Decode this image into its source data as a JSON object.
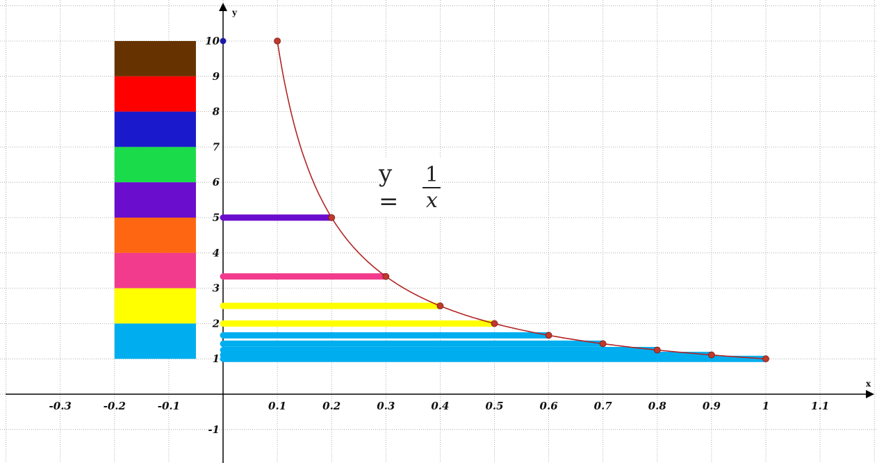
{
  "chart_data": {
    "type": "line",
    "title": "",
    "formula": {
      "lhs": "y =",
      "numerator": "1",
      "denominator": "x"
    },
    "xlabel": "x",
    "ylabel": "y",
    "xlim": [
      -0.4,
      1.2
    ],
    "ylim": [
      -1.7,
      11.1
    ],
    "grid": true,
    "x_ticks": [
      {
        "value": -0.3,
        "label": "-0.3"
      },
      {
        "value": -0.2,
        "label": "-0.2"
      },
      {
        "value": -0.1,
        "label": "-0.1"
      },
      {
        "value": 0.1,
        "label": "0.1"
      },
      {
        "value": 0.2,
        "label": "0.2"
      },
      {
        "value": 0.3,
        "label": "0.3"
      },
      {
        "value": 0.4,
        "label": "0.4"
      },
      {
        "value": 0.5,
        "label": "0.5"
      },
      {
        "value": 0.6,
        "label": "0.6"
      },
      {
        "value": 0.7,
        "label": "0.7"
      },
      {
        "value": 0.8,
        "label": "0.8"
      },
      {
        "value": 0.9,
        "label": "0.9"
      },
      {
        "value": 1,
        "label": "1"
      },
      {
        "value": 1.1,
        "label": "1.1"
      }
    ],
    "y_ticks": [
      {
        "value": -1,
        "label": "-1"
      },
      {
        "value": 1,
        "label": "1"
      },
      {
        "value": 2,
        "label": "2"
      },
      {
        "value": 3,
        "label": "3"
      },
      {
        "value": 4,
        "label": "4"
      },
      {
        "value": 5,
        "label": "5"
      },
      {
        "value": 6,
        "label": "6"
      },
      {
        "value": 7,
        "label": "7"
      },
      {
        "value": 8,
        "label": "8"
      },
      {
        "value": 9,
        "label": "9"
      },
      {
        "value": 10,
        "label": "10"
      }
    ],
    "curve": {
      "function": "1/x",
      "x_range": [
        0.1,
        1
      ],
      "color": "#b22222"
    },
    "curve_points": [
      {
        "x": 0.1,
        "y": 10
      },
      {
        "x": 0.2,
        "y": 5
      },
      {
        "x": 0.3,
        "y": 3.333
      },
      {
        "x": 0.4,
        "y": 2.5
      },
      {
        "x": 0.5,
        "y": 2
      },
      {
        "x": 0.6,
        "y": 1.667
      },
      {
        "x": 0.7,
        "y": 1.429
      },
      {
        "x": 0.8,
        "y": 1.25
      },
      {
        "x": 0.9,
        "y": 1.111
      },
      {
        "x": 1,
        "y": 1
      }
    ],
    "point_color": "#c0392b",
    "y_axis_points": [
      {
        "x": 0,
        "y": 10,
        "color": "#1a1aaa"
      }
    ],
    "segments": [
      {
        "y": 5,
        "x_end": 0.2,
        "color": "#6a0dcc"
      },
      {
        "y": 3.333,
        "x_end": 0.3,
        "color": "#f23b8c"
      },
      {
        "y": 2.5,
        "x_end": 0.4,
        "color": "#ffff00"
      },
      {
        "y": 2,
        "x_end": 0.5,
        "color": "#ffff00"
      },
      {
        "y": 1.667,
        "x_end": 0.6,
        "color": "#00aeef"
      },
      {
        "y": 1.429,
        "x_end": 0.7,
        "color": "#00aeef"
      },
      {
        "y": 1.25,
        "x_end": 0.8,
        "color": "#00aeef"
      },
      {
        "y": 1.111,
        "x_end": 0.9,
        "color": "#00aeef"
      },
      {
        "y": 1,
        "x_end": 1,
        "color": "#00aeef"
      }
    ],
    "color_blocks": {
      "x_range": [
        -0.2,
        -0.05
      ],
      "blocks": [
        {
          "y_from": 9,
          "y_to": 10,
          "color": "#663300"
        },
        {
          "y_from": 8,
          "y_to": 9,
          "color": "#ff0000"
        },
        {
          "y_from": 7,
          "y_to": 8,
          "color": "#1a1acc"
        },
        {
          "y_from": 6,
          "y_to": 7,
          "color": "#1adc4a"
        },
        {
          "y_from": 5,
          "y_to": 6,
          "color": "#6a0dcc"
        },
        {
          "y_from": 4,
          "y_to": 5,
          "color": "#ff6611"
        },
        {
          "y_from": 3,
          "y_to": 4,
          "color": "#f23b8c"
        },
        {
          "y_from": 2,
          "y_to": 3,
          "color": "#ffff00"
        },
        {
          "y_from": 1,
          "y_to": 2,
          "color": "#00aeef"
        }
      ]
    }
  }
}
